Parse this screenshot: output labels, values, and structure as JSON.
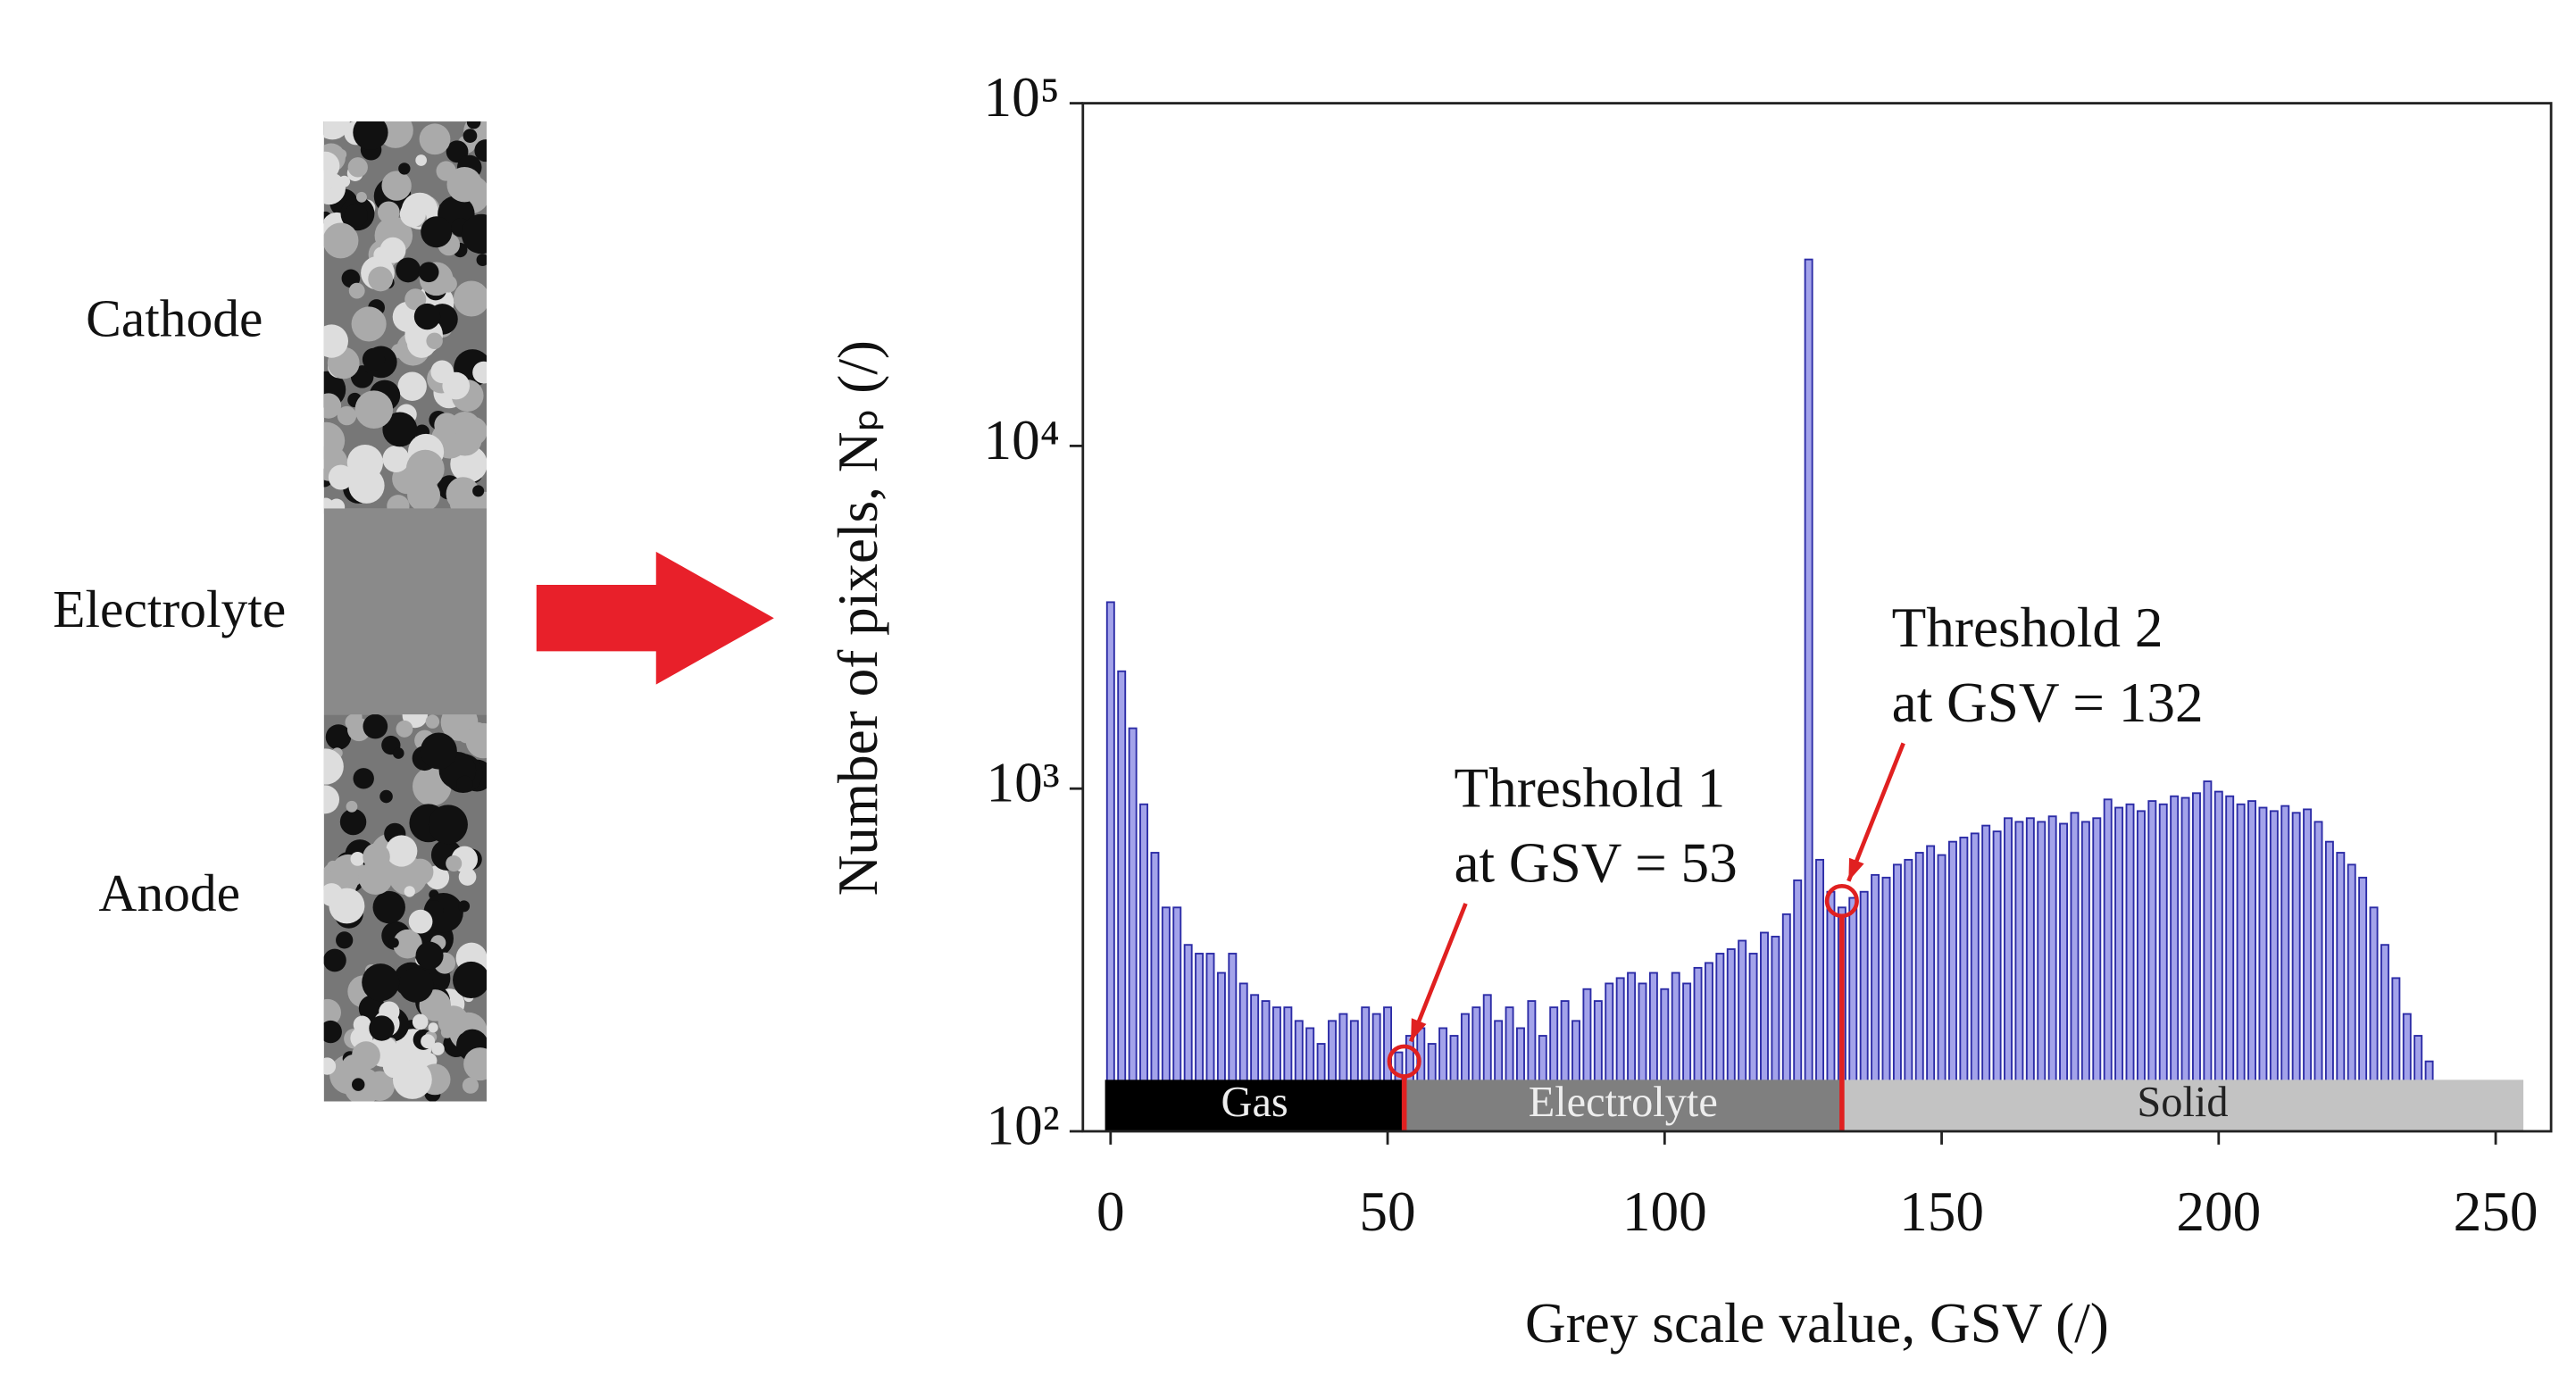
{
  "chart_data": {
    "type": "bar",
    "x": [
      0,
      2,
      4,
      6,
      8,
      10,
      12,
      14,
      16,
      18,
      20,
      22,
      24,
      26,
      28,
      30,
      32,
      34,
      36,
      38,
      40,
      42,
      44,
      46,
      48,
      50,
      52,
      54,
      56,
      58,
      60,
      62,
      64,
      66,
      68,
      70,
      72,
      74,
      76,
      78,
      80,
      82,
      84,
      86,
      88,
      90,
      92,
      94,
      96,
      98,
      100,
      102,
      104,
      106,
      108,
      110,
      112,
      114,
      116,
      118,
      120,
      122,
      124,
      126,
      128,
      130,
      132,
      134,
      136,
      138,
      140,
      142,
      144,
      146,
      148,
      150,
      152,
      154,
      156,
      158,
      160,
      162,
      164,
      166,
      168,
      170,
      172,
      174,
      176,
      178,
      180,
      182,
      184,
      186,
      188,
      190,
      192,
      194,
      196,
      198,
      200,
      202,
      204,
      206,
      208,
      210,
      212,
      214,
      216,
      218,
      220,
      222,
      224,
      226,
      228,
      230,
      232,
      234,
      236,
      238,
      240
    ],
    "values": [
      3500,
      2200,
      1500,
      900,
      650,
      450,
      450,
      350,
      330,
      330,
      290,
      330,
      270,
      250,
      240,
      230,
      230,
      210,
      200,
      180,
      210,
      220,
      210,
      230,
      220,
      230,
      170,
      190,
      200,
      180,
      200,
      190,
      220,
      230,
      250,
      210,
      230,
      200,
      240,
      190,
      230,
      240,
      210,
      260,
      240,
      270,
      280,
      290,
      270,
      290,
      260,
      290,
      270,
      300,
      310,
      330,
      340,
      360,
      330,
      380,
      370,
      430,
      540,
      35000,
      620,
      500,
      450,
      480,
      500,
      560,
      550,
      600,
      620,
      650,
      680,
      640,
      700,
      720,
      740,
      780,
      750,
      820,
      800,
      820,
      800,
      830,
      790,
      850,
      800,
      820,
      930,
      880,
      900,
      860,
      920,
      900,
      950,
      940,
      970,
      1050,
      980,
      950,
      900,
      920,
      880,
      860,
      890,
      850,
      870,
      800,
      700,
      650,
      600,
      550,
      450,
      350,
      280,
      220,
      190,
      160,
      140
    ],
    "color": "#2b2ba6",
    "fill": "#a3a3ea",
    "xlabel": "Grey scale value, GSV (/)",
    "ylabel": "Number of pixels, Nₚ (/)",
    "xlim": [
      -5,
      260
    ],
    "xticks": [
      0,
      50,
      100,
      150,
      200,
      250
    ],
    "ylim": [
      100,
      100000
    ],
    "yscale": "log",
    "yticks": [
      {
        "value": 100,
        "label": "10²"
      },
      {
        "value": 1000,
        "label": "10³"
      },
      {
        "value": 10000,
        "label": "10⁴"
      },
      {
        "value": 100000,
        "label": "10⁵"
      }
    ],
    "regions": [
      {
        "name": "Gas",
        "start": -1,
        "end": 53,
        "color": "#000000"
      },
      {
        "name": "Electrolyte",
        "start": 53,
        "end": 132,
        "color": "#7f7f7f"
      },
      {
        "name": "Solid",
        "start": 132,
        "end": 255,
        "color": "#c3c3c3"
      }
    ],
    "thresholds": [
      {
        "x": 53,
        "y": 160,
        "lines": [
          "Threshold 1",
          "at GSV = 53"
        ]
      },
      {
        "x": 132,
        "y": 470,
        "lines": [
          "Threshold 2",
          "at GSV = 132"
        ]
      }
    ],
    "threshold_color": "#e02020",
    "sample_labels": [
      "Cathode",
      "Electrolyte",
      "Anode"
    ]
  }
}
